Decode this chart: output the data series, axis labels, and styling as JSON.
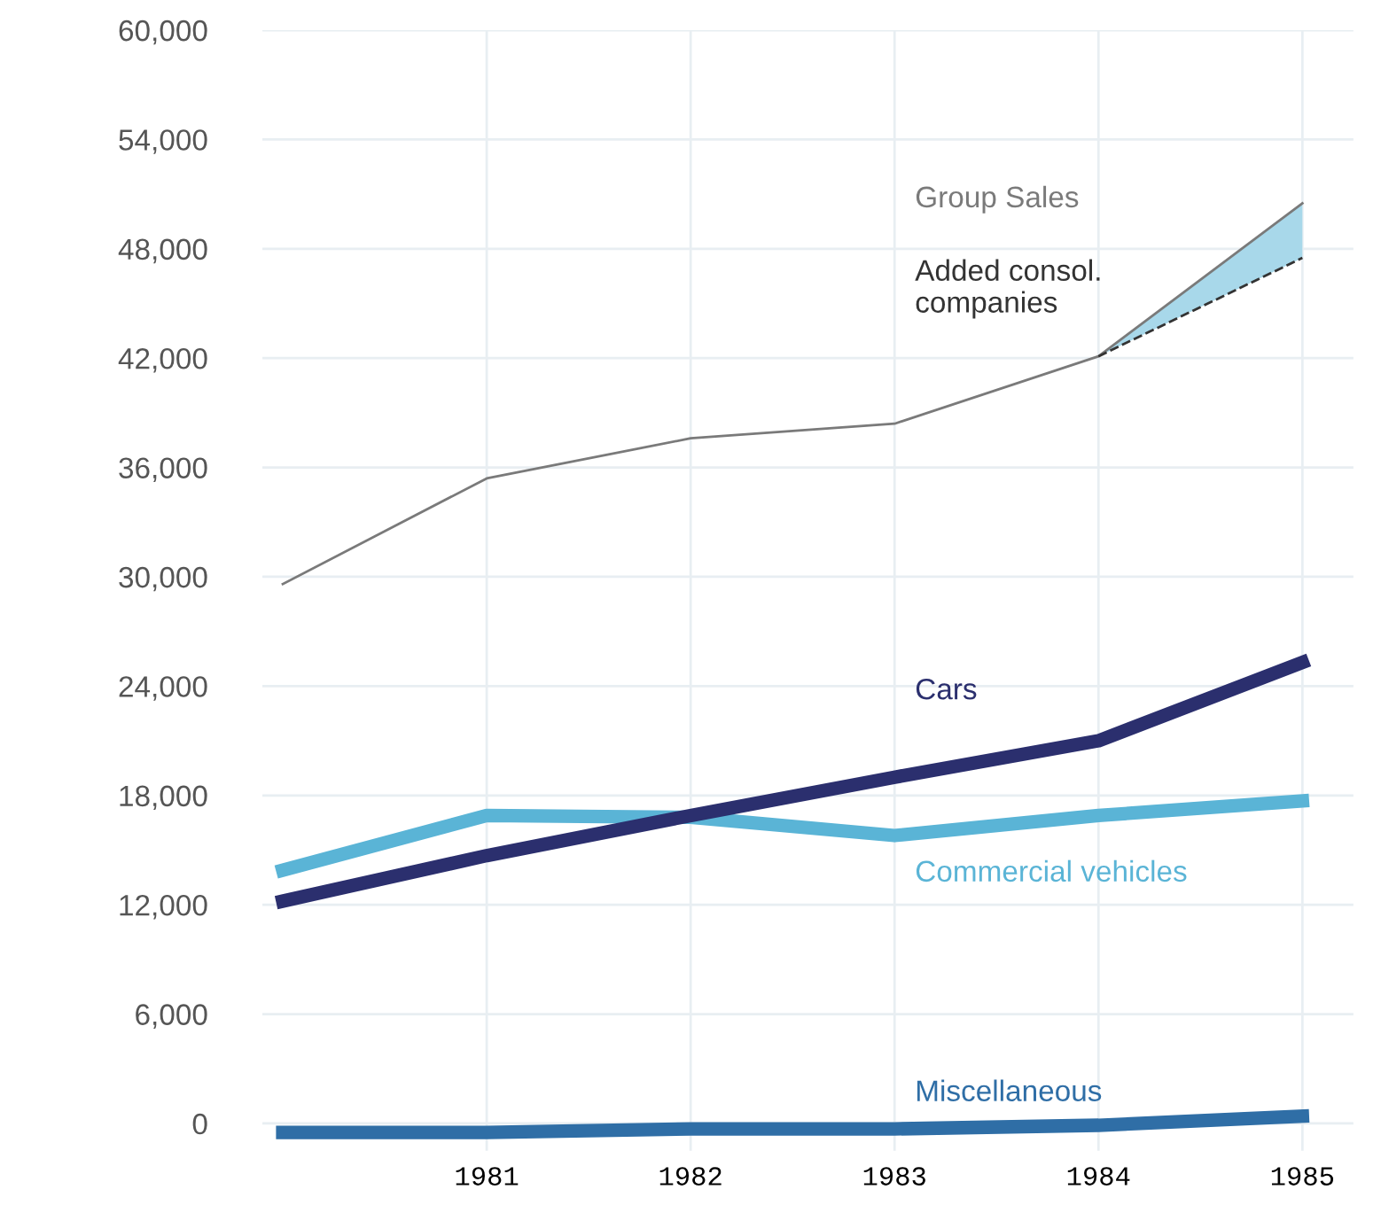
{
  "chart_data": {
    "type": "line",
    "x": [
      1980,
      1981,
      1982,
      1983,
      1984,
      1985
    ],
    "xlim": [
      1979.9,
      1985.25
    ],
    "xticks": [
      1981,
      1982,
      1983,
      1984,
      1985
    ],
    "ylim": [
      -1500,
      60000
    ],
    "yticks": [
      {
        "value": 0,
        "label": "0"
      },
      {
        "value": 6000,
        "label": "6,000"
      },
      {
        "value": 12000,
        "label": "12,000"
      },
      {
        "value": 18000,
        "label": "18,000"
      },
      {
        "value": 24000,
        "label": "24,000"
      },
      {
        "value": 30000,
        "label": "30,000"
      },
      {
        "value": 36000,
        "label": "36,000"
      },
      {
        "value": 42000,
        "label": "42,000"
      },
      {
        "value": 48000,
        "label": "48,000"
      },
      {
        "value": 54000,
        "label": "54,000"
      },
      {
        "value": 60000,
        "label": "60,000"
      }
    ],
    "grid": true,
    "legend": false,
    "series": [
      {
        "name": "Group Sales",
        "color": "#7a7a7a",
        "values": [
          29600,
          35400,
          37600,
          38400,
          42100,
          50500
        ]
      },
      {
        "name": "Added consol.\ncompanies",
        "color": "#333333",
        "line_style": "dashed",
        "values": [
          null,
          null,
          null,
          null,
          42100,
          47500
        ],
        "lower": [
          null,
          null,
          null,
          null,
          42100,
          47500
        ],
        "upper": [
          null,
          null,
          null,
          null,
          42100,
          50500
        ]
      },
      {
        "name": "Commercial vehicles",
        "color": "#5ab4d6",
        "values": [
          13900,
          16900,
          16800,
          15800,
          16900,
          17700
        ]
      },
      {
        "name": "Cars",
        "color": "#2b2f6e",
        "values": [
          12200,
          14700,
          16900,
          19000,
          21000,
          25300
        ]
      },
      {
        "name": "Miscellaneous",
        "color": "#2f6ea6",
        "values": [
          -500,
          -500,
          -300,
          -300,
          -100,
          400
        ]
      }
    ]
  }
}
